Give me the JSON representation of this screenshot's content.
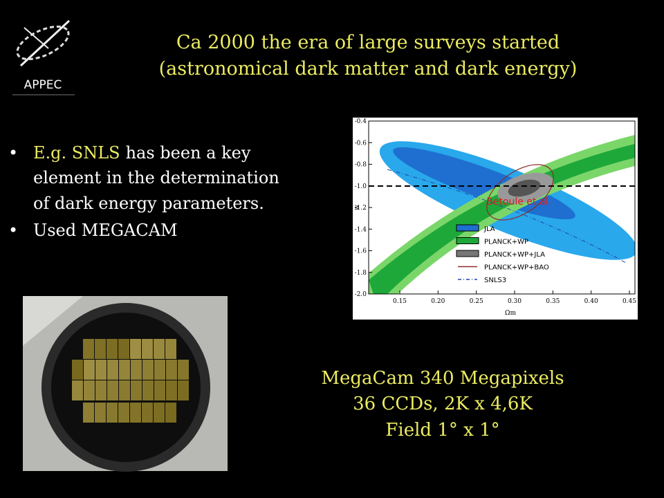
{
  "logo": {
    "text": "APPEC"
  },
  "title": {
    "lines": [
      "Ca  2000 the  era of large surveys started",
      "(astronomical dark matter and dark energy)"
    ]
  },
  "bullets": [
    {
      "highlight": "E.g. SNLS",
      "lines": [
        "has been a key",
        "element in the determination",
        "of  dark energy parameters."
      ]
    },
    {
      "lines": [
        "Used  MEGACAM"
      ]
    }
  ],
  "figure": {
    "y_label": "w",
    "x_label": "Ωm",
    "y_ticks": [
      "-0.4",
      "-0.6",
      "-0.8",
      "-1.0",
      "-1.2",
      "-1.4",
      "-1.6",
      "-1.8",
      "-2.0"
    ],
    "x_ticks": [
      "0.15",
      "0.20",
      "0.25",
      "0.30",
      "0.35",
      "0.40",
      "0.45"
    ],
    "annotation": "Betoule et al.",
    "legend": [
      "JLA",
      "PLANCK+WP",
      "PLANCK+WP+JLA",
      "PLANCK+WP+BAO",
      "SNLS3"
    ]
  },
  "caption": {
    "lines": [
      "MegaCam 340 Megapixels",
      "36 CCDs, 2K x 4,6K",
      "Field  1° x 1°"
    ]
  }
}
